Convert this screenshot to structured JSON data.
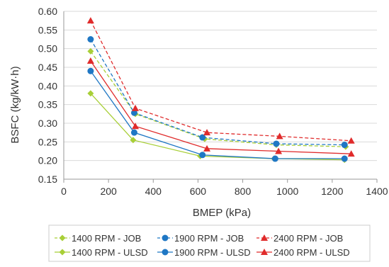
{
  "chart_data": {
    "type": "line",
    "title": "",
    "xlabel": "BMEP (kPa)",
    "ylabel": "BSFC (kg/kW·h)",
    "xlim": [
      0,
      1400
    ],
    "ylim": [
      0.15,
      0.6
    ],
    "xticks": [
      "0",
      "200",
      "400",
      "600",
      "800",
      "1000",
      "1200",
      "1400"
    ],
    "yticks": [
      "0.15",
      "0.20",
      "0.25",
      "0.30",
      "0.35",
      "0.40",
      "0.45",
      "0.50",
      "0.55",
      "0.60"
    ],
    "grid": "horizontal",
    "legend_position": "bottom",
    "series": [
      {
        "name": "1400 RPM - JOB",
        "color": "#a8cf37",
        "marker": "diamond",
        "dashed": true,
        "x": [
          120,
          320,
          630,
          950,
          1260
        ],
        "y": [
          0.493,
          0.325,
          0.258,
          0.242,
          0.237
        ]
      },
      {
        "name": "1900 RPM - JOB",
        "color": "#1f77c4",
        "marker": "circle",
        "dashed": true,
        "x": [
          120,
          315,
          620,
          950,
          1255
        ],
        "y": [
          0.525,
          0.328,
          0.262,
          0.245,
          0.242
        ]
      },
      {
        "name": "2400 RPM - JOB",
        "color": "#e02b2b",
        "marker": "triangle",
        "dashed": true,
        "x": [
          120,
          320,
          640,
          965,
          1285
        ],
        "y": [
          0.575,
          0.34,
          0.275,
          0.265,
          0.253
        ]
      },
      {
        "name": "1400 RPM - ULSD",
        "color": "#a8cf37",
        "marker": "diamond",
        "dashed": false,
        "x": [
          120,
          310,
          610,
          940,
          1255
        ],
        "y": [
          0.38,
          0.255,
          0.212,
          0.205,
          0.202
        ]
      },
      {
        "name": "1900 RPM - ULSD",
        "color": "#1f77c4",
        "marker": "circle",
        "dashed": false,
        "x": [
          120,
          315,
          620,
          945,
          1255
        ],
        "y": [
          0.44,
          0.275,
          0.215,
          0.205,
          0.205
        ]
      },
      {
        "name": "2400 RPM - ULSD",
        "color": "#e02b2b",
        "marker": "triangle",
        "dashed": false,
        "x": [
          120,
          320,
          640,
          960,
          1285
        ],
        "y": [
          0.467,
          0.292,
          0.232,
          0.225,
          0.218
        ]
      }
    ]
  }
}
